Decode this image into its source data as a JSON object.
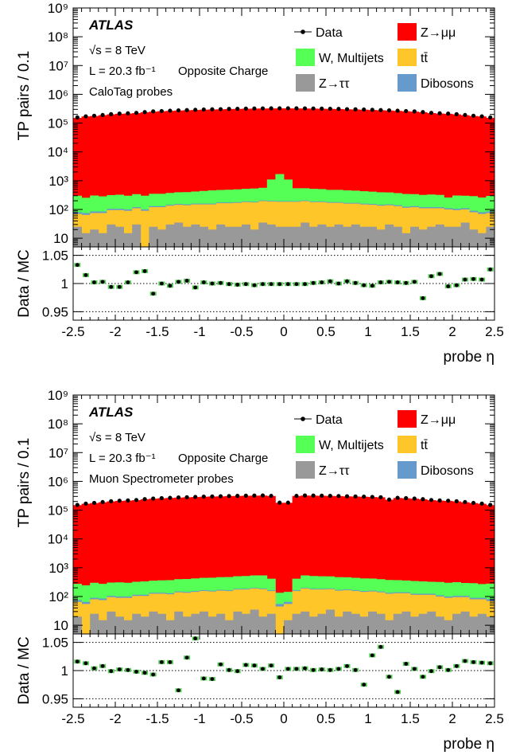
{
  "chart_data": [
    {
      "type": "area",
      "stacked": true,
      "ylog": true,
      "ylim": [
        5,
        1000000000
      ],
      "xlim": [
        -2.5,
        2.5
      ],
      "ylabel": "TP pairs / 0.1",
      "xlabel": "probe η",
      "ratio_label": "Data / MC",
      "ratio_ylim": [
        0.935,
        1.065
      ],
      "ratio_ticks": [
        "1.05",
        "1",
        "0.95"
      ],
      "y_tick_labels": [
        "10",
        "10²",
        "10³",
        "10⁴",
        "10⁵",
        "10⁶",
        "10⁷",
        "10⁸",
        "10⁹"
      ],
      "x_tick_labels": [
        "-2.5",
        "-2",
        "-1.5",
        "-1",
        "-0.5",
        "0",
        "0.5",
        "1",
        "1.5",
        "2",
        "2.5"
      ],
      "annotations": {
        "experiment": "ATLAS",
        "energy": "√s = 8 TeV",
        "lumi": "L = 20.3 fb⁻¹",
        "charge": "Opposite Charge",
        "probes": "CaloTag probes"
      },
      "legend": [
        {
          "label": "Data",
          "kind": "marker",
          "color": "#000000"
        },
        {
          "label": "Z→μμ",
          "kind": "fill",
          "color": "#ff0000"
        },
        {
          "label": "W, Multijets",
          "kind": "fill",
          "color": "#55ff55"
        },
        {
          "label": "tt̄",
          "kind": "fill",
          "color": "#ffc62a"
        },
        {
          "label": "Z→ττ",
          "kind": "fill",
          "color": "#999999"
        },
        {
          "label": "Dibosons",
          "kind": "fill",
          "color": "#6699cc"
        }
      ],
      "x": [
        -2.45,
        -2.35,
        -2.25,
        -2.15,
        -2.05,
        -1.95,
        -1.85,
        -1.75,
        -1.65,
        -1.55,
        -1.45,
        -1.35,
        -1.25,
        -1.15,
        -1.05,
        -0.95,
        -0.85,
        -0.75,
        -0.65,
        -0.55,
        -0.45,
        -0.35,
        -0.25,
        -0.15,
        -0.05,
        0.05,
        0.15,
        0.25,
        0.35,
        0.45,
        0.55,
        0.65,
        0.75,
        0.85,
        0.95,
        1.05,
        1.15,
        1.25,
        1.35,
        1.45,
        1.55,
        1.65,
        1.75,
        1.85,
        1.95,
        2.05,
        2.15,
        2.25,
        2.35,
        2.45
      ],
      "series": [
        {
          "name": "Z→ττ",
          "color": "#999999",
          "values": [
            25,
            15,
            20,
            15,
            30,
            25,
            15,
            30,
            5,
            25,
            20,
            30,
            35,
            25,
            30,
            25,
            20,
            30,
            25,
            25,
            30,
            20,
            35,
            30,
            25,
            25,
            25,
            35,
            25,
            30,
            25,
            30,
            25,
            30,
            25,
            25,
            20,
            30,
            25,
            15,
            25,
            20,
            25,
            30,
            25,
            25,
            35,
            20,
            15,
            25
          ]
        },
        {
          "name": "tt̄",
          "color": "#ffc62a",
          "values": [
            45,
            50,
            55,
            60,
            65,
            70,
            75,
            80,
            85,
            95,
            100,
            105,
            110,
            115,
            120,
            125,
            130,
            135,
            140,
            145,
            150,
            155,
            160,
            160,
            160,
            160,
            160,
            160,
            155,
            150,
            145,
            140,
            135,
            130,
            125,
            120,
            115,
            110,
            105,
            100,
            95,
            90,
            85,
            80,
            75,
            70,
            65,
            60,
            55,
            50
          ]
        },
        {
          "name": "Dibosons",
          "color": "#6699cc",
          "values": [
            10,
            10,
            10,
            10,
            10,
            10,
            10,
            10,
            10,
            10,
            10,
            10,
            10,
            10,
            10,
            10,
            10,
            10,
            10,
            10,
            10,
            10,
            10,
            10,
            10,
            10,
            10,
            10,
            10,
            10,
            10,
            10,
            10,
            10,
            10,
            10,
            10,
            10,
            10,
            10,
            10,
            10,
            10,
            10,
            10,
            10,
            10,
            10,
            10,
            10
          ]
        },
        {
          "name": "W, Multijets",
          "color": "#55ff55",
          "values": [
            220,
            180,
            220,
            200,
            210,
            220,
            200,
            220,
            200,
            220,
            220,
            230,
            240,
            250,
            260,
            280,
            300,
            300,
            310,
            320,
            330,
            350,
            360,
            900,
            1500,
            900,
            350,
            340,
            330,
            320,
            300,
            300,
            290,
            280,
            270,
            260,
            250,
            240,
            230,
            220,
            210,
            200,
            210,
            200,
            150,
            200,
            190,
            200,
            180,
            210
          ]
        },
        {
          "name": "Z→μμ",
          "color": "#ff0000",
          "values": [
            151000,
            170000,
            176000,
            188000,
            201000,
            210000,
            214000,
            222000,
            238000,
            250000,
            258000,
            265000,
            273000,
            279000,
            285000,
            292000,
            297000,
            301000,
            307000,
            311000,
            315000,
            318000,
            321000,
            322000,
            323000,
            323000,
            322000,
            321000,
            318000,
            315000,
            311000,
            307000,
            301000,
            297000,
            292000,
            285000,
            279000,
            273000,
            265000,
            258000,
            250000,
            238000,
            222000,
            214000,
            210000,
            201000,
            188000,
            176000,
            170000,
            151000
          ]
        }
      ],
      "data_values": [
        157000,
        172000,
        180000,
        191000,
        204000,
        214000,
        219000,
        227000,
        241000,
        255000,
        262000,
        269000,
        277000,
        283000,
        289000,
        296000,
        301000,
        305000,
        311000,
        315000,
        319000,
        322000,
        325000,
        326000,
        327000,
        327000,
        326000,
        325000,
        322000,
        319000,
        315000,
        311000,
        305000,
        301000,
        296000,
        289000,
        283000,
        277000,
        269000,
        262000,
        255000,
        241000,
        227000,
        219000,
        214000,
        204000,
        191000,
        180000,
        172000,
        157000
      ],
      "ratio": [
        1.033,
        1.015,
        1.002,
        1.003,
        0.994,
        0.994,
        1.002,
        1.02,
        1.022,
        0.982,
        1.0,
        0.996,
        1.003,
        1.005,
        0.993,
        1.002,
        1.0,
        1.001,
        0.999,
        0.998,
        0.999,
        0.997,
        0.999,
        0.999,
        0.999,
        0.999,
        0.999,
        0.999,
        1.001,
        1.002,
        1.004,
        1.0,
        1.004,
        1.001,
        0.997,
        0.996,
        1.002,
        1.003,
        1.002,
        1.001,
        1.003,
        0.974,
        1.013,
        1.017,
        0.995,
        0.997,
        1.007,
        1.008,
        1.007,
        1.025
      ]
    },
    {
      "type": "area",
      "stacked": true,
      "ylog": true,
      "ylim": [
        5,
        1000000000
      ],
      "xlim": [
        -2.5,
        2.5
      ],
      "ylabel": "TP pairs / 0.1",
      "xlabel": "probe η",
      "ratio_label": "Data / MC",
      "ratio_ylim": [
        0.935,
        1.065
      ],
      "ratio_ticks": [
        "1.05",
        "1",
        "0.95"
      ],
      "y_tick_labels": [
        "10",
        "10²",
        "10³",
        "10⁴",
        "10⁵",
        "10⁶",
        "10⁷",
        "10⁸",
        "10⁹"
      ],
      "x_tick_labels": [
        "-2.5",
        "-2",
        "-1.5",
        "-1",
        "-0.5",
        "0",
        "0.5",
        "1",
        "1.5",
        "2",
        "2.5"
      ],
      "annotations": {
        "experiment": "ATLAS",
        "energy": "√s = 8 TeV",
        "lumi": "L = 20.3 fb⁻¹",
        "charge": "Opposite Charge",
        "probes": "Muon Spectrometer probes"
      },
      "legend": [
        {
          "label": "Data",
          "kind": "marker",
          "color": "#000000"
        },
        {
          "label": "Z→μμ",
          "kind": "fill",
          "color": "#ff0000"
        },
        {
          "label": "W, Multijets",
          "kind": "fill",
          "color": "#55ff55"
        },
        {
          "label": "tt̄",
          "kind": "fill",
          "color": "#ffc62a"
        },
        {
          "label": "Z→ττ",
          "kind": "fill",
          "color": "#999999"
        },
        {
          "label": "Dibosons",
          "kind": "fill",
          "color": "#6699cc"
        }
      ],
      "x": [
        -2.45,
        -2.35,
        -2.25,
        -2.15,
        -2.05,
        -1.95,
        -1.85,
        -1.75,
        -1.65,
        -1.55,
        -1.45,
        -1.35,
        -1.25,
        -1.15,
        -1.05,
        -0.95,
        -0.85,
        -0.75,
        -0.65,
        -0.55,
        -0.45,
        -0.35,
        -0.25,
        -0.15,
        -0.05,
        0.05,
        0.15,
        0.25,
        0.35,
        0.45,
        0.55,
        0.65,
        0.75,
        0.85,
        0.95,
        1.05,
        1.15,
        1.25,
        1.35,
        1.45,
        1.55,
        1.65,
        1.75,
        1.85,
        1.95,
        2.05,
        2.15,
        2.25,
        2.35,
        2.45
      ],
      "series": [
        {
          "name": "Z→ττ",
          "color": "#999999",
          "values": [
            20,
            5,
            25,
            15,
            30,
            20,
            15,
            25,
            20,
            30,
            25,
            15,
            30,
            20,
            25,
            30,
            20,
            25,
            15,
            30,
            25,
            35,
            20,
            25,
            5,
            15,
            25,
            30,
            20,
            25,
            35,
            20,
            30,
            25,
            20,
            30,
            25,
            15,
            25,
            30,
            20,
            25,
            30,
            20,
            15,
            25,
            30,
            20,
            25,
            20
          ]
        },
        {
          "name": "tt̄",
          "color": "#ffc62a",
          "values": [
            45,
            50,
            55,
            60,
            65,
            70,
            75,
            80,
            85,
            95,
            100,
            105,
            110,
            115,
            120,
            125,
            130,
            135,
            140,
            145,
            150,
            155,
            160,
            130,
            40,
            40,
            130,
            160,
            155,
            150,
            145,
            140,
            135,
            130,
            125,
            120,
            115,
            110,
            105,
            100,
            95,
            90,
            85,
            80,
            75,
            70,
            65,
            60,
            55,
            50
          ]
        },
        {
          "name": "Dibosons",
          "color": "#6699cc",
          "values": [
            10,
            10,
            10,
            10,
            10,
            10,
            10,
            10,
            10,
            10,
            10,
            10,
            10,
            10,
            10,
            10,
            10,
            10,
            10,
            10,
            10,
            10,
            10,
            10,
            10,
            10,
            10,
            10,
            10,
            10,
            10,
            10,
            10,
            10,
            10,
            10,
            10,
            10,
            10,
            10,
            10,
            10,
            10,
            10,
            10,
            10,
            10,
            10,
            10,
            10
          ]
        },
        {
          "name": "W, Multijets",
          "color": "#55ff55",
          "values": [
            200,
            180,
            210,
            190,
            200,
            210,
            200,
            210,
            220,
            220,
            230,
            240,
            250,
            260,
            270,
            280,
            290,
            300,
            310,
            320,
            330,
            340,
            350,
            250,
            80,
            80,
            250,
            340,
            330,
            320,
            310,
            300,
            290,
            280,
            270,
            260,
            250,
            240,
            230,
            220,
            220,
            210,
            200,
            210,
            200,
            210,
            190,
            200,
            180,
            200
          ]
        },
        {
          "name": "Z→μμ",
          "color": "#ff0000",
          "values": [
            149000,
            166000,
            176000,
            188000,
            201000,
            210000,
            214000,
            222000,
            238000,
            250000,
            258000,
            265000,
            273000,
            279000,
            285000,
            292000,
            297000,
            301000,
            307000,
            311000,
            315000,
            318000,
            321000,
            310000,
            180000,
            180000,
            310000,
            321000,
            318000,
            315000,
            311000,
            307000,
            301000,
            297000,
            292000,
            285000,
            279000,
            230000,
            265000,
            258000,
            250000,
            238000,
            222000,
            214000,
            210000,
            201000,
            188000,
            176000,
            166000,
            149000
          ]
        }
      ],
      "data_values": [
        152000,
        169000,
        179000,
        191000,
        204000,
        213000,
        217000,
        225000,
        241000,
        253000,
        261000,
        268000,
        276000,
        282000,
        288000,
        295000,
        300000,
        304000,
        310000,
        314000,
        318000,
        321000,
        324000,
        313000,
        182000,
        182000,
        313000,
        324000,
        321000,
        318000,
        314000,
        310000,
        304000,
        300000,
        295000,
        288000,
        282000,
        233000,
        268000,
        261000,
        253000,
        241000,
        225000,
        217000,
        213000,
        204000,
        191000,
        179000,
        169000,
        152000
      ],
      "ratio": [
        1.016,
        1.013,
        1.004,
        1.008,
        0.999,
        1.002,
        1.001,
        0.998,
        0.996,
        0.993,
        1.015,
        1.015,
        0.965,
        1.023,
        1.057,
        0.986,
        0.985,
        1.011,
        1.001,
        0.999,
        1.01,
        1.009,
        1.003,
        1.009,
        0.988,
        1.003,
        1.003,
        1.004,
        1.001,
        1.002,
        1.001,
        1.003,
        1.008,
        1.001,
        0.975,
        1.027,
        1.042,
        0.989,
        0.962,
        1.012,
        1.003,
        0.989,
        0.999,
        1.006,
        1.001,
        1.008,
        1.017,
        1.015,
        1.014,
        1.013
      ]
    }
  ]
}
